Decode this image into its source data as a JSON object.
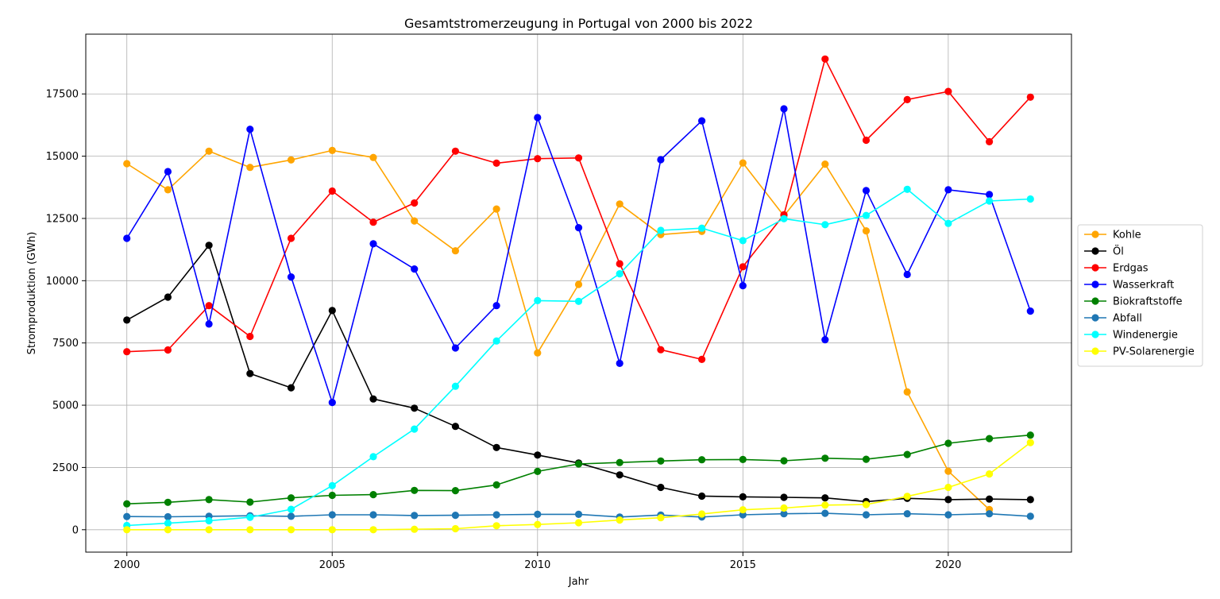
{
  "chart_data": {
    "type": "line",
    "title": "Gesamtstromerzeugung in Portugal von 2000 bis 2022",
    "xlabel": "Jahr",
    "ylabel": "Stromproduktion (GWh)",
    "xlim": [
      1999,
      2023
    ],
    "ylim": [
      -900,
      19900
    ],
    "x_ticks": [
      2000,
      2005,
      2010,
      2015,
      2020
    ],
    "y_ticks": [
      0,
      2500,
      5000,
      7500,
      10000,
      12500,
      15000,
      17500
    ],
    "grid": true,
    "legend_position": "right",
    "x": [
      2000,
      2001,
      2002,
      2003,
      2004,
      2005,
      2006,
      2007,
      2008,
      2009,
      2010,
      2011,
      2012,
      2013,
      2014,
      2015,
      2016,
      2017,
      2018,
      2019,
      2020,
      2021,
      2022
    ],
    "series": [
      {
        "name": "Kohle",
        "color": "#ffa500",
        "values": [
          14700,
          13650,
          15200,
          14550,
          14850,
          15230,
          14950,
          12400,
          11200,
          12880,
          7100,
          9850,
          13080,
          11850,
          11980,
          14730,
          12600,
          14680,
          12000,
          5530,
          2350,
          810,
          null
        ]
      },
      {
        "name": "Öl",
        "color": "#000000",
        "values": [
          8420,
          9340,
          11420,
          6270,
          5700,
          8800,
          5250,
          4880,
          4150,
          3300,
          3000,
          2680,
          2200,
          1700,
          1350,
          1320,
          1300,
          1280,
          1130,
          1260,
          1210,
          1230,
          1210
        ]
      },
      {
        "name": "Erdgas",
        "color": "#ff0000",
        "values": [
          7150,
          7220,
          9000,
          7760,
          11700,
          13600,
          12350,
          13120,
          15200,
          14720,
          14900,
          14930,
          10680,
          7230,
          6840,
          10560,
          12650,
          18900,
          15640,
          17270,
          17600,
          15580,
          17370
        ]
      },
      {
        "name": "Wasserkraft",
        "color": "#0000ff",
        "values": [
          11700,
          14380,
          8260,
          16080,
          10150,
          5110,
          11480,
          10470,
          7300,
          9000,
          16550,
          12130,
          6680,
          14860,
          16420,
          9800,
          16900,
          7630,
          13620,
          10250,
          13650,
          13460,
          8780
        ]
      },
      {
        "name": "Biokraftstoffe",
        "color": "#008000",
        "values": [
          1040,
          1100,
          1210,
          1110,
          1280,
          1380,
          1410,
          1580,
          1570,
          1800,
          2340,
          2640,
          2700,
          2760,
          2810,
          2820,
          2770,
          2870,
          2830,
          3020,
          3470,
          3660,
          3800
        ]
      },
      {
        "name": "Abfall",
        "color": "#1f77b4",
        "values": [
          530,
          520,
          540,
          560,
          540,
          600,
          600,
          570,
          580,
          600,
          620,
          620,
          510,
          590,
          510,
          600,
          640,
          660,
          600,
          640,
          600,
          640,
          540
        ]
      },
      {
        "name": "Windenergie",
        "color": "#00ffff",
        "values": [
          170,
          260,
          360,
          500,
          820,
          1770,
          2930,
          4040,
          5760,
          7580,
          9200,
          9170,
          10280,
          12020,
          12110,
          11610,
          12490,
          12250,
          12620,
          13670,
          12300,
          13200,
          13280
        ]
      },
      {
        "name": "PV-Solarenergie",
        "color": "#ffff00",
        "values": [
          0,
          0,
          0,
          0,
          0,
          0,
          0,
          20,
          40,
          160,
          210,
          280,
          390,
          480,
          630,
          800,
          870,
          990,
          1010,
          1340,
          1700,
          2240,
          3500
        ]
      }
    ]
  }
}
